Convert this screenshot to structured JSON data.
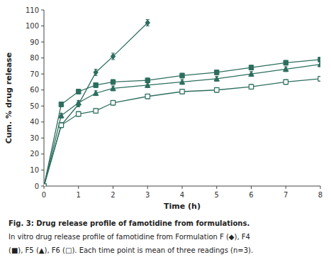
{
  "chart_data": {
    "type": "line",
    "xlabel": "Time (h)",
    "ylabel": "Cum. % drug release",
    "xlim": [
      0,
      8
    ],
    "ylim": [
      0,
      110
    ],
    "xticks": [
      0,
      1,
      2,
      3,
      4,
      5,
      6,
      7,
      8
    ],
    "yticks": [
      0,
      10,
      20,
      30,
      40,
      50,
      60,
      70,
      80,
      90,
      100,
      110
    ],
    "series": [
      {
        "color": "#2d6e5e",
        "marker": "diamond",
        "line_style": "solid",
        "x": [
          0,
          0.5,
          1,
          1.5,
          2,
          3
        ],
        "values": [
          0,
          38,
          51,
          71,
          81,
          102
        ],
        "errors": [
          0,
          1.5,
          1.5,
          2.0,
          2.0,
          2.0
        ]
      },
      {
        "color": "#2d6e5e",
        "marker": "square",
        "line_style": "solid",
        "x": [
          0,
          0.5,
          1,
          1.5,
          2,
          3,
          4,
          5,
          6,
          7,
          8
        ],
        "values": [
          0,
          51,
          59,
          63,
          65,
          66,
          69,
          71,
          74,
          77,
          79
        ],
        "errors": [
          0,
          1.5,
          1.5,
          1.5,
          1.5,
          1.5,
          1.5,
          1.5,
          1.5,
          1.5,
          1.5
        ]
      },
      {
        "color": "#2d6e5e",
        "marker": "triangle",
        "line_style": "solid",
        "x": [
          0,
          0.5,
          1,
          1.5,
          2,
          3,
          4,
          5,
          6,
          7,
          8
        ],
        "values": [
          0,
          44,
          52,
          58,
          61,
          63,
          65,
          67,
          70,
          73,
          76
        ],
        "errors": [
          0,
          1.5,
          1.5,
          1.5,
          1.5,
          1.5,
          1.5,
          1.5,
          1.5,
          1.5,
          1.5
        ]
      },
      {
        "color": "#2d6e5e",
        "marker": "open-square",
        "line_style": "solid",
        "x": [
          0,
          0.5,
          1,
          1.5,
          2,
          3,
          4,
          5,
          6,
          7,
          8
        ],
        "values": [
          0,
          38,
          45,
          47,
          52,
          56,
          59,
          60,
          62,
          65,
          67
        ],
        "errors": [
          0,
          1.5,
          1.5,
          1.5,
          1.5,
          1.5,
          1.5,
          1.5,
          1.5,
          1.5,
          1.5
        ]
      }
    ],
    "annotations": [
      "Fig. 3: Drug release profile of famotidine from formulations.",
      "In vitro drug release profile of famotidine from Formulation F (◆), F4",
      "(■), F5 (▲), F6 (□). Each time point is mean of three readings (n=3)."
    ]
  }
}
